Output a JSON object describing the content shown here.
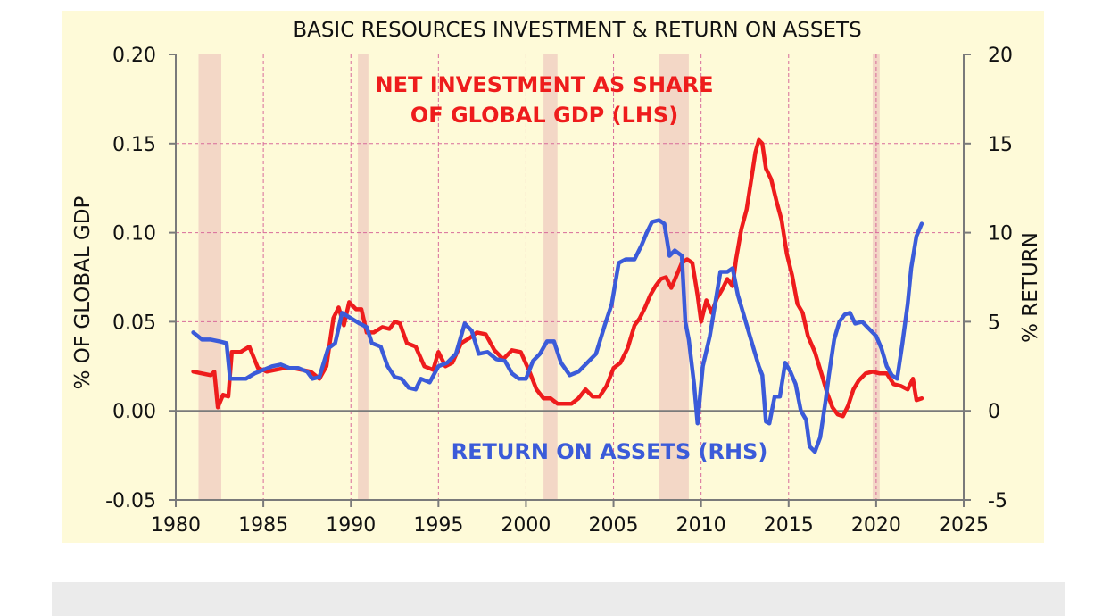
{
  "chart_data": {
    "type": "line",
    "title": "BASIC RESOURCES INVESTMENT & RETURN ON ASSETS",
    "ylabel": "% OF GLOBAL GDP",
    "y2label": "% RETURN",
    "xlim": [
      1980,
      2025
    ],
    "ylim": [
      -0.05,
      0.2
    ],
    "y2lim": [
      -5,
      20
    ],
    "x_ticks": [
      "1980",
      "1985",
      "1990",
      "1995",
      "2000",
      "2005",
      "2010",
      "2015",
      "2020",
      "2025"
    ],
    "y_ticks": [
      "0.20",
      "0.15",
      "0.10",
      "0.05",
      "0.00",
      "-0.05"
    ],
    "y2_ticks": [
      "20",
      "15",
      "10",
      "5",
      "0",
      "-5"
    ],
    "grid": true,
    "recessions": [
      [
        1981.3,
        1982.6
      ],
      [
        1990.4,
        1991.0
      ],
      [
        2001.0,
        2001.8
      ],
      [
        2007.6,
        2009.3
      ],
      [
        2019.8,
        2020.2
      ]
    ],
    "series": [
      {
        "name": "NET INVESTMENT AS SHARE OF GLOBAL GDP (LHS)",
        "axis": "left",
        "color": "#ee1c1c",
        "points": [
          [
            1981,
            0.022
          ],
          [
            1981.5,
            0.021
          ],
          [
            1982,
            0.02
          ],
          [
            1982.2,
            0.022
          ],
          [
            1982.4,
            0.002
          ],
          [
            1982.7,
            0.009
          ],
          [
            1983,
            0.008
          ],
          [
            1983.2,
            0.033
          ],
          [
            1983.7,
            0.033
          ],
          [
            1984.2,
            0.036
          ],
          [
            1984.7,
            0.024
          ],
          [
            1985.2,
            0.022
          ],
          [
            1985.7,
            0.023
          ],
          [
            1986.2,
            0.024
          ],
          [
            1986.7,
            0.024
          ],
          [
            1987.2,
            0.023
          ],
          [
            1987.7,
            0.022
          ],
          [
            1988.2,
            0.018
          ],
          [
            1988.6,
            0.025
          ],
          [
            1989,
            0.052
          ],
          [
            1989.3,
            0.058
          ],
          [
            1989.6,
            0.048
          ],
          [
            1989.9,
            0.061
          ],
          [
            1990.3,
            0.057
          ],
          [
            1990.6,
            0.057
          ],
          [
            1990.9,
            0.044
          ],
          [
            1991.3,
            0.044
          ],
          [
            1991.8,
            0.047
          ],
          [
            1992.2,
            0.046
          ],
          [
            1992.5,
            0.05
          ],
          [
            1992.8,
            0.049
          ],
          [
            1993.2,
            0.038
          ],
          [
            1993.7,
            0.036
          ],
          [
            1994.2,
            0.025
          ],
          [
            1994.7,
            0.023
          ],
          [
            1995,
            0.033
          ],
          [
            1995.4,
            0.025
          ],
          [
            1995.8,
            0.027
          ],
          [
            1996.3,
            0.038
          ],
          [
            1996.8,
            0.041
          ],
          [
            1997.2,
            0.044
          ],
          [
            1997.7,
            0.043
          ],
          [
            1998.2,
            0.034
          ],
          [
            1998.7,
            0.029
          ],
          [
            1999.2,
            0.034
          ],
          [
            1999.7,
            0.033
          ],
          [
            2000.2,
            0.022
          ],
          [
            2000.6,
            0.012
          ],
          [
            2001,
            0.007
          ],
          [
            2001.4,
            0.007
          ],
          [
            2001.8,
            0.004
          ],
          [
            2002.2,
            0.004
          ],
          [
            2002.6,
            0.004
          ],
          [
            2003,
            0.007
          ],
          [
            2003.4,
            0.012
          ],
          [
            2003.8,
            0.008
          ],
          [
            2004.2,
            0.008
          ],
          [
            2004.6,
            0.014
          ],
          [
            2005,
            0.024
          ],
          [
            2005.4,
            0.027
          ],
          [
            2005.8,
            0.035
          ],
          [
            2006.2,
            0.048
          ],
          [
            2006.5,
            0.052
          ],
          [
            2006.8,
            0.058
          ],
          [
            2007.1,
            0.065
          ],
          [
            2007.4,
            0.07
          ],
          [
            2007.7,
            0.074
          ],
          [
            2008,
            0.075
          ],
          [
            2008.3,
            0.069
          ],
          [
            2008.6,
            0.076
          ],
          [
            2008.9,
            0.083
          ],
          [
            2009.2,
            0.085
          ],
          [
            2009.5,
            0.083
          ],
          [
            2009.8,
            0.065
          ],
          [
            2010,
            0.05
          ],
          [
            2010.3,
            0.062
          ],
          [
            2010.6,
            0.055
          ],
          [
            2010.9,
            0.063
          ],
          [
            2011.2,
            0.068
          ],
          [
            2011.5,
            0.074
          ],
          [
            2011.8,
            0.07
          ],
          [
            2012,
            0.085
          ],
          [
            2012.3,
            0.102
          ],
          [
            2012.6,
            0.113
          ],
          [
            2012.9,
            0.132
          ],
          [
            2013.1,
            0.145
          ],
          [
            2013.3,
            0.152
          ],
          [
            2013.5,
            0.15
          ],
          [
            2013.7,
            0.136
          ],
          [
            2014,
            0.13
          ],
          [
            2014.3,
            0.118
          ],
          [
            2014.6,
            0.107
          ],
          [
            2014.9,
            0.088
          ],
          [
            2015.2,
            0.076
          ],
          [
            2015.5,
            0.06
          ],
          [
            2015.8,
            0.055
          ],
          [
            2016.1,
            0.042
          ],
          [
            2016.5,
            0.033
          ],
          [
            2016.9,
            0.02
          ],
          [
            2017.2,
            0.01
          ],
          [
            2017.5,
            0.002
          ],
          [
            2017.8,
            -0.002
          ],
          [
            2018.1,
            -0.003
          ],
          [
            2018.4,
            0.003
          ],
          [
            2018.7,
            0.012
          ],
          [
            2019,
            0.017
          ],
          [
            2019.4,
            0.021
          ],
          [
            2019.8,
            0.022
          ],
          [
            2020.2,
            0.021
          ],
          [
            2020.6,
            0.021
          ],
          [
            2021,
            0.015
          ],
          [
            2021.4,
            0.014
          ],
          [
            2021.8,
            0.012
          ],
          [
            2022.1,
            0.018
          ],
          [
            2022.3,
            0.006
          ],
          [
            2022.6,
            0.007
          ]
        ]
      },
      {
        "name": "RETURN ON ASSETS (RHS)",
        "axis": "right",
        "color": "#3b5bd9",
        "points": [
          [
            1981,
            4.4
          ],
          [
            1981.5,
            4.0
          ],
          [
            1982,
            4.0
          ],
          [
            1982.5,
            3.9
          ],
          [
            1982.9,
            3.8
          ],
          [
            1983.1,
            1.8
          ],
          [
            1983.6,
            1.8
          ],
          [
            1984,
            1.8
          ],
          [
            1984.5,
            2.1
          ],
          [
            1985,
            2.3
          ],
          [
            1985.5,
            2.5
          ],
          [
            1986,
            2.6
          ],
          [
            1986.5,
            2.4
          ],
          [
            1987,
            2.4
          ],
          [
            1987.5,
            2.2
          ],
          [
            1987.8,
            1.8
          ],
          [
            1988.2,
            1.9
          ],
          [
            1988.7,
            3.5
          ],
          [
            1989.1,
            3.8
          ],
          [
            1989.5,
            5.5
          ],
          [
            1990,
            5.2
          ],
          [
            1990.5,
            4.9
          ],
          [
            1990.9,
            4.7
          ],
          [
            1991.2,
            3.8
          ],
          [
            1991.7,
            3.6
          ],
          [
            1992.1,
            2.5
          ],
          [
            1992.5,
            1.9
          ],
          [
            1992.9,
            1.8
          ],
          [
            1993.3,
            1.3
          ],
          [
            1993.7,
            1.2
          ],
          [
            1994,
            1.8
          ],
          [
            1994.5,
            1.6
          ],
          [
            1995,
            2.5
          ],
          [
            1995.5,
            2.7
          ],
          [
            1996,
            3.2
          ],
          [
            1996.5,
            4.9
          ],
          [
            1996.9,
            4.5
          ],
          [
            1997.3,
            3.2
          ],
          [
            1997.8,
            3.3
          ],
          [
            1998.3,
            2.9
          ],
          [
            1998.8,
            2.8
          ],
          [
            1999.2,
            2.1
          ],
          [
            1999.6,
            1.8
          ],
          [
            2000,
            1.8
          ],
          [
            2000.4,
            2.8
          ],
          [
            2000.8,
            3.2
          ],
          [
            2001.2,
            3.9
          ],
          [
            2001.6,
            3.9
          ],
          [
            2002,
            2.7
          ],
          [
            2002.5,
            2.0
          ],
          [
            2003,
            2.2
          ],
          [
            2003.5,
            2.7
          ],
          [
            2004,
            3.2
          ],
          [
            2004.5,
            4.8
          ],
          [
            2004.9,
            6.0
          ],
          [
            2005.3,
            8.3
          ],
          [
            2005.7,
            8.5
          ],
          [
            2006.2,
            8.5
          ],
          [
            2006.6,
            9.3
          ],
          [
            2006.9,
            10.0
          ],
          [
            2007.2,
            10.6
          ],
          [
            2007.6,
            10.7
          ],
          [
            2007.9,
            10.5
          ],
          [
            2008.2,
            8.7
          ],
          [
            2008.5,
            9.0
          ],
          [
            2008.9,
            8.7
          ],
          [
            2009.1,
            5.0
          ],
          [
            2009.3,
            4.0
          ],
          [
            2009.6,
            1.5
          ],
          [
            2009.8,
            -0.7
          ],
          [
            2010.1,
            2.5
          ],
          [
            2010.5,
            4.2
          ],
          [
            2010.8,
            6.0
          ],
          [
            2011.1,
            7.8
          ],
          [
            2011.5,
            7.8
          ],
          [
            2011.8,
            8.0
          ],
          [
            2012.1,
            6.5
          ],
          [
            2012.4,
            5.5
          ],
          [
            2012.7,
            4.5
          ],
          [
            2013,
            3.5
          ],
          [
            2013.3,
            2.5
          ],
          [
            2013.5,
            2.0
          ],
          [
            2013.7,
            -0.6
          ],
          [
            2013.9,
            -0.7
          ],
          [
            2014.2,
            0.8
          ],
          [
            2014.5,
            0.8
          ],
          [
            2014.8,
            2.7
          ],
          [
            2015.1,
            2.2
          ],
          [
            2015.4,
            1.5
          ],
          [
            2015.7,
            0.0
          ],
          [
            2016,
            -0.5
          ],
          [
            2016.2,
            -2.0
          ],
          [
            2016.5,
            -2.3
          ],
          [
            2016.8,
            -1.5
          ],
          [
            2017.1,
            0.5
          ],
          [
            2017.3,
            2.0
          ],
          [
            2017.6,
            4.0
          ],
          [
            2017.9,
            5.0
          ],
          [
            2018.2,
            5.4
          ],
          [
            2018.5,
            5.5
          ],
          [
            2018.8,
            4.9
          ],
          [
            2019.2,
            5.0
          ],
          [
            2019.6,
            4.6
          ],
          [
            2020,
            4.2
          ],
          [
            2020.3,
            3.5
          ],
          [
            2020.6,
            2.5
          ],
          [
            2020.9,
            2.0
          ],
          [
            2021.2,
            1.8
          ],
          [
            2021.5,
            3.8
          ],
          [
            2021.8,
            6.0
          ],
          [
            2022,
            8.0
          ],
          [
            2022.3,
            9.8
          ],
          [
            2022.6,
            10.5
          ]
        ]
      }
    ],
    "annotations": [
      {
        "lines": [
          "NET INVESTMENT AS SHARE",
          "OF GLOBAL GDP (LHS)"
        ],
        "color": "#ee1c1c"
      },
      {
        "lines": [
          "RETURN ON ASSETS (RHS)"
        ],
        "color": "#3b5bd9"
      }
    ]
  }
}
